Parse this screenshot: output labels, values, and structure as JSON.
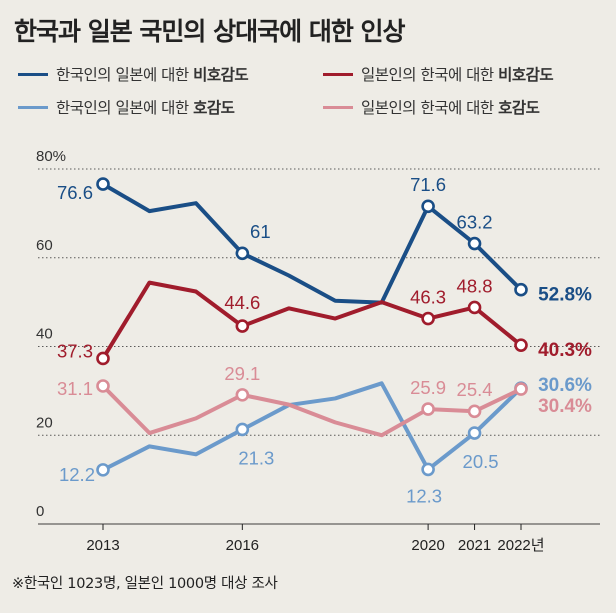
{
  "title": "한국과 일본 국민의 상대국에 대한 인상",
  "legend": [
    {
      "text": "한국인의 일본에 대한 ",
      "bold": "비호감도",
      "color": "#1a4e86"
    },
    {
      "text": "일본인의 한국에 대한 ",
      "bold": "비호감도",
      "color": "#a01c2c"
    },
    {
      "text": "한국인의 일본에 대한 ",
      "bold": "호감도",
      "color": "#6b9acb"
    },
    {
      "text": "일본인의 한국에 대한 ",
      "bold": "호감도",
      "color": "#d98c96"
    }
  ],
  "footnote": "※한국인 1023명, 일본인 1000명 대상 조사",
  "chart_data": {
    "type": "line",
    "title": "한국과 일본 국민의 상대국에 대한 인상",
    "x": [
      2013,
      2014,
      2015,
      2016,
      2017,
      2018,
      2019,
      2020,
      2021,
      2022
    ],
    "x_tick_labels": [
      "2013",
      "2016",
      "2020",
      "2021",
      "2022년"
    ],
    "x_tick_values": [
      2013,
      2016,
      2020,
      2021,
      2022
    ],
    "y_tick_labels": [
      "80%",
      "60",
      "40",
      "20",
      "0"
    ],
    "y_tick_values": [
      80,
      60,
      40,
      20,
      0
    ],
    "ylim": [
      0,
      80
    ],
    "series": [
      {
        "name": "한국인의 일본에 대한 비호감도",
        "color": "#1a4e86",
        "values": [
          76.6,
          70.5,
          72.3,
          61,
          56,
          50.3,
          49.9,
          71.6,
          63.2,
          52.8
        ],
        "labels": [
          {
            "i": 0,
            "text": "76.6"
          },
          {
            "i": 3,
            "text": "61"
          },
          {
            "i": 7,
            "text": "71.6"
          },
          {
            "i": 8,
            "text": "63.2"
          },
          {
            "i": 9,
            "text": "52.8%",
            "bold": true
          }
        ]
      },
      {
        "name": "일본인의 한국에 대한 비호감도",
        "color": "#a01c2c",
        "values": [
          37.3,
          54.4,
          52.4,
          44.6,
          48.6,
          46.3,
          50,
          46.3,
          48.8,
          40.3
        ],
        "labels": [
          {
            "i": 0,
            "text": "37.3"
          },
          {
            "i": 3,
            "text": "44.6"
          },
          {
            "i": 7,
            "text": "46.3"
          },
          {
            "i": 8,
            "text": "48.8"
          },
          {
            "i": 9,
            "text": "40.3%",
            "bold": true
          }
        ]
      },
      {
        "name": "한국인의 일본에 대한 호감도",
        "color": "#6b9acb",
        "values": [
          12.2,
          17.5,
          15.7,
          21.3,
          26.8,
          28.3,
          31.7,
          12.3,
          20.5,
          30.6
        ],
        "labels": [
          {
            "i": 0,
            "text": "12.2"
          },
          {
            "i": 3,
            "text": "21.3"
          },
          {
            "i": 7,
            "text": "12.3"
          },
          {
            "i": 8,
            "text": "20.5"
          },
          {
            "i": 9,
            "text": "30.6%",
            "bold": true
          }
        ]
      },
      {
        "name": "일본인의 한국에 대한 호감도",
        "color": "#d98c96",
        "values": [
          31.1,
          20.5,
          23.8,
          29.1,
          26.9,
          22.9,
          20.0,
          25.9,
          25.4,
          30.4
        ],
        "labels": [
          {
            "i": 0,
            "text": "31.1"
          },
          {
            "i": 3,
            "text": "29.1"
          },
          {
            "i": 7,
            "text": "25.9"
          },
          {
            "i": 8,
            "text": "25.4"
          },
          {
            "i": 9,
            "text": "30.4%",
            "bold": true
          }
        ]
      }
    ],
    "markers_at": [
      0,
      3,
      7,
      8,
      9
    ]
  }
}
